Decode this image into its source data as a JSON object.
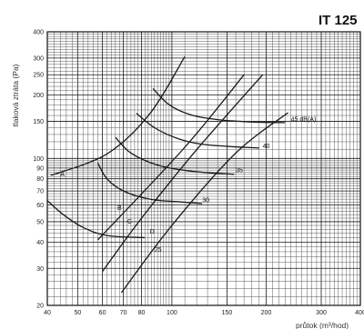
{
  "chart_data": {
    "type": "line",
    "title": "IT 125",
    "xlabel": "průtok (m³/hod)",
    "ylabel": "tlaková ztráta (Pa)",
    "x_scale": "log",
    "y_scale": "log",
    "xlim": [
      40,
      400
    ],
    "ylim": [
      20,
      400
    ],
    "grid": true,
    "x_ticks": [
      40,
      50,
      60,
      70,
      80,
      100,
      150,
      200,
      300,
      400
    ],
    "y_ticks": [
      20,
      30,
      40,
      50,
      60,
      70,
      80,
      90,
      100,
      150,
      200,
      250,
      300,
      400
    ],
    "series": [
      {
        "name": "A",
        "x": [
          41,
          62,
          85,
          110
        ],
        "y": [
          83,
          105,
          163,
          305
        ]
      },
      {
        "name": "B",
        "x": [
          58,
          110,
          170
        ],
        "y": [
          41,
          113,
          250
        ]
      },
      {
        "name": "C",
        "x": [
          60,
          80,
          120,
          195
        ],
        "y": [
          29,
          52,
          110,
          250
        ]
      },
      {
        "name": "D",
        "x": [
          69,
          100,
          160,
          235
        ],
        "y": [
          23,
          48,
          106,
          165
        ]
      },
      {
        "name": "25",
        "x": [
          40,
          45,
          52,
          62,
          82
        ],
        "y": [
          63,
          54,
          47,
          43,
          42
        ]
      },
      {
        "name": "30",
        "x": [
          58,
          62,
          70,
          85,
          108,
          125
        ],
        "y": [
          95,
          80,
          70,
          64,
          62,
          61
        ]
      },
      {
        "name": "35",
        "x": [
          66,
          74,
          90,
          115,
          158
        ],
        "y": [
          126,
          106,
          93,
          87,
          84
        ]
      },
      {
        "name": "40",
        "x": [
          77,
          88,
          105,
          130,
          190
        ],
        "y": [
          164,
          140,
          124,
          116,
          112
        ]
      },
      {
        "name": "45 dB(A)",
        "x": [
          87,
          98,
          115,
          140,
          180,
          230
        ],
        "y": [
          215,
          180,
          161,
          153,
          149,
          148
        ]
      }
    ],
    "annotations": [
      "A",
      "B",
      "C",
      "D",
      "25",
      "30",
      "35",
      "40",
      "45 dB(A)"
    ]
  }
}
